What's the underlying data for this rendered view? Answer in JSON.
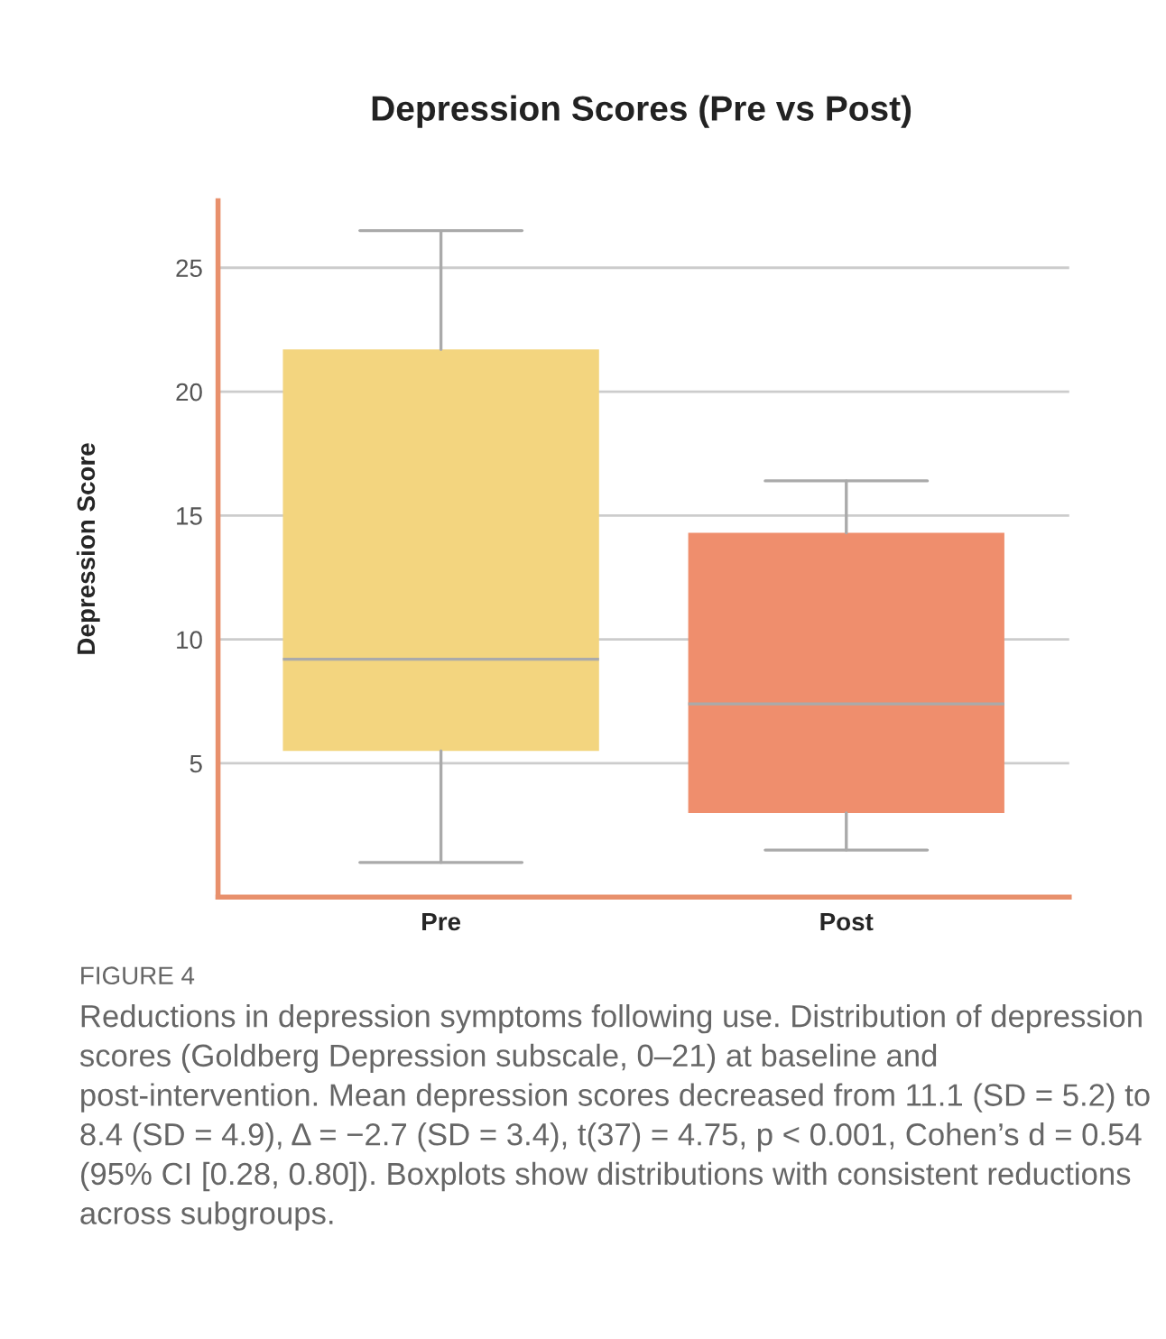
{
  "chart_data": {
    "type": "box",
    "title": "Depression Scores (Pre vs Post)",
    "ylabel": "Depression Score",
    "categories": [
      "Pre",
      "Post"
    ],
    "boxes": [
      {
        "low": 1.0,
        "q1": 5.5,
        "median": 9.2,
        "q3": 21.7,
        "high": 26.5
      },
      {
        "low": 1.5,
        "q1": 3.0,
        "median": 7.4,
        "q3": 14.3,
        "high": 16.4
      }
    ],
    "colors": [
      "#f3d57f",
      "#ef8e6d"
    ],
    "ylim": [
      -0.4,
      27.7
    ],
    "yticks": [
      5,
      10,
      15,
      20,
      25
    ],
    "grid": "y",
    "annotations": [
      "FIGURE 4",
      "Reductions in depression symptoms following use. Distribution of depression scores (Goldberg Depression subscale, 0–21) at baseline and post-intervention. Mean depression scores decreased from 11.1 (SD = 5.2) to 8.4 (SD = 4.9), Δ = −2.7 (SD = 3.4), t(37) = 4.75, p < 0.001, Cohen’s d = 0.54 (95% CI [0.28, 0.80]). Boxplots show distributions with consistent reductions across subgroups."
    ]
  }
}
